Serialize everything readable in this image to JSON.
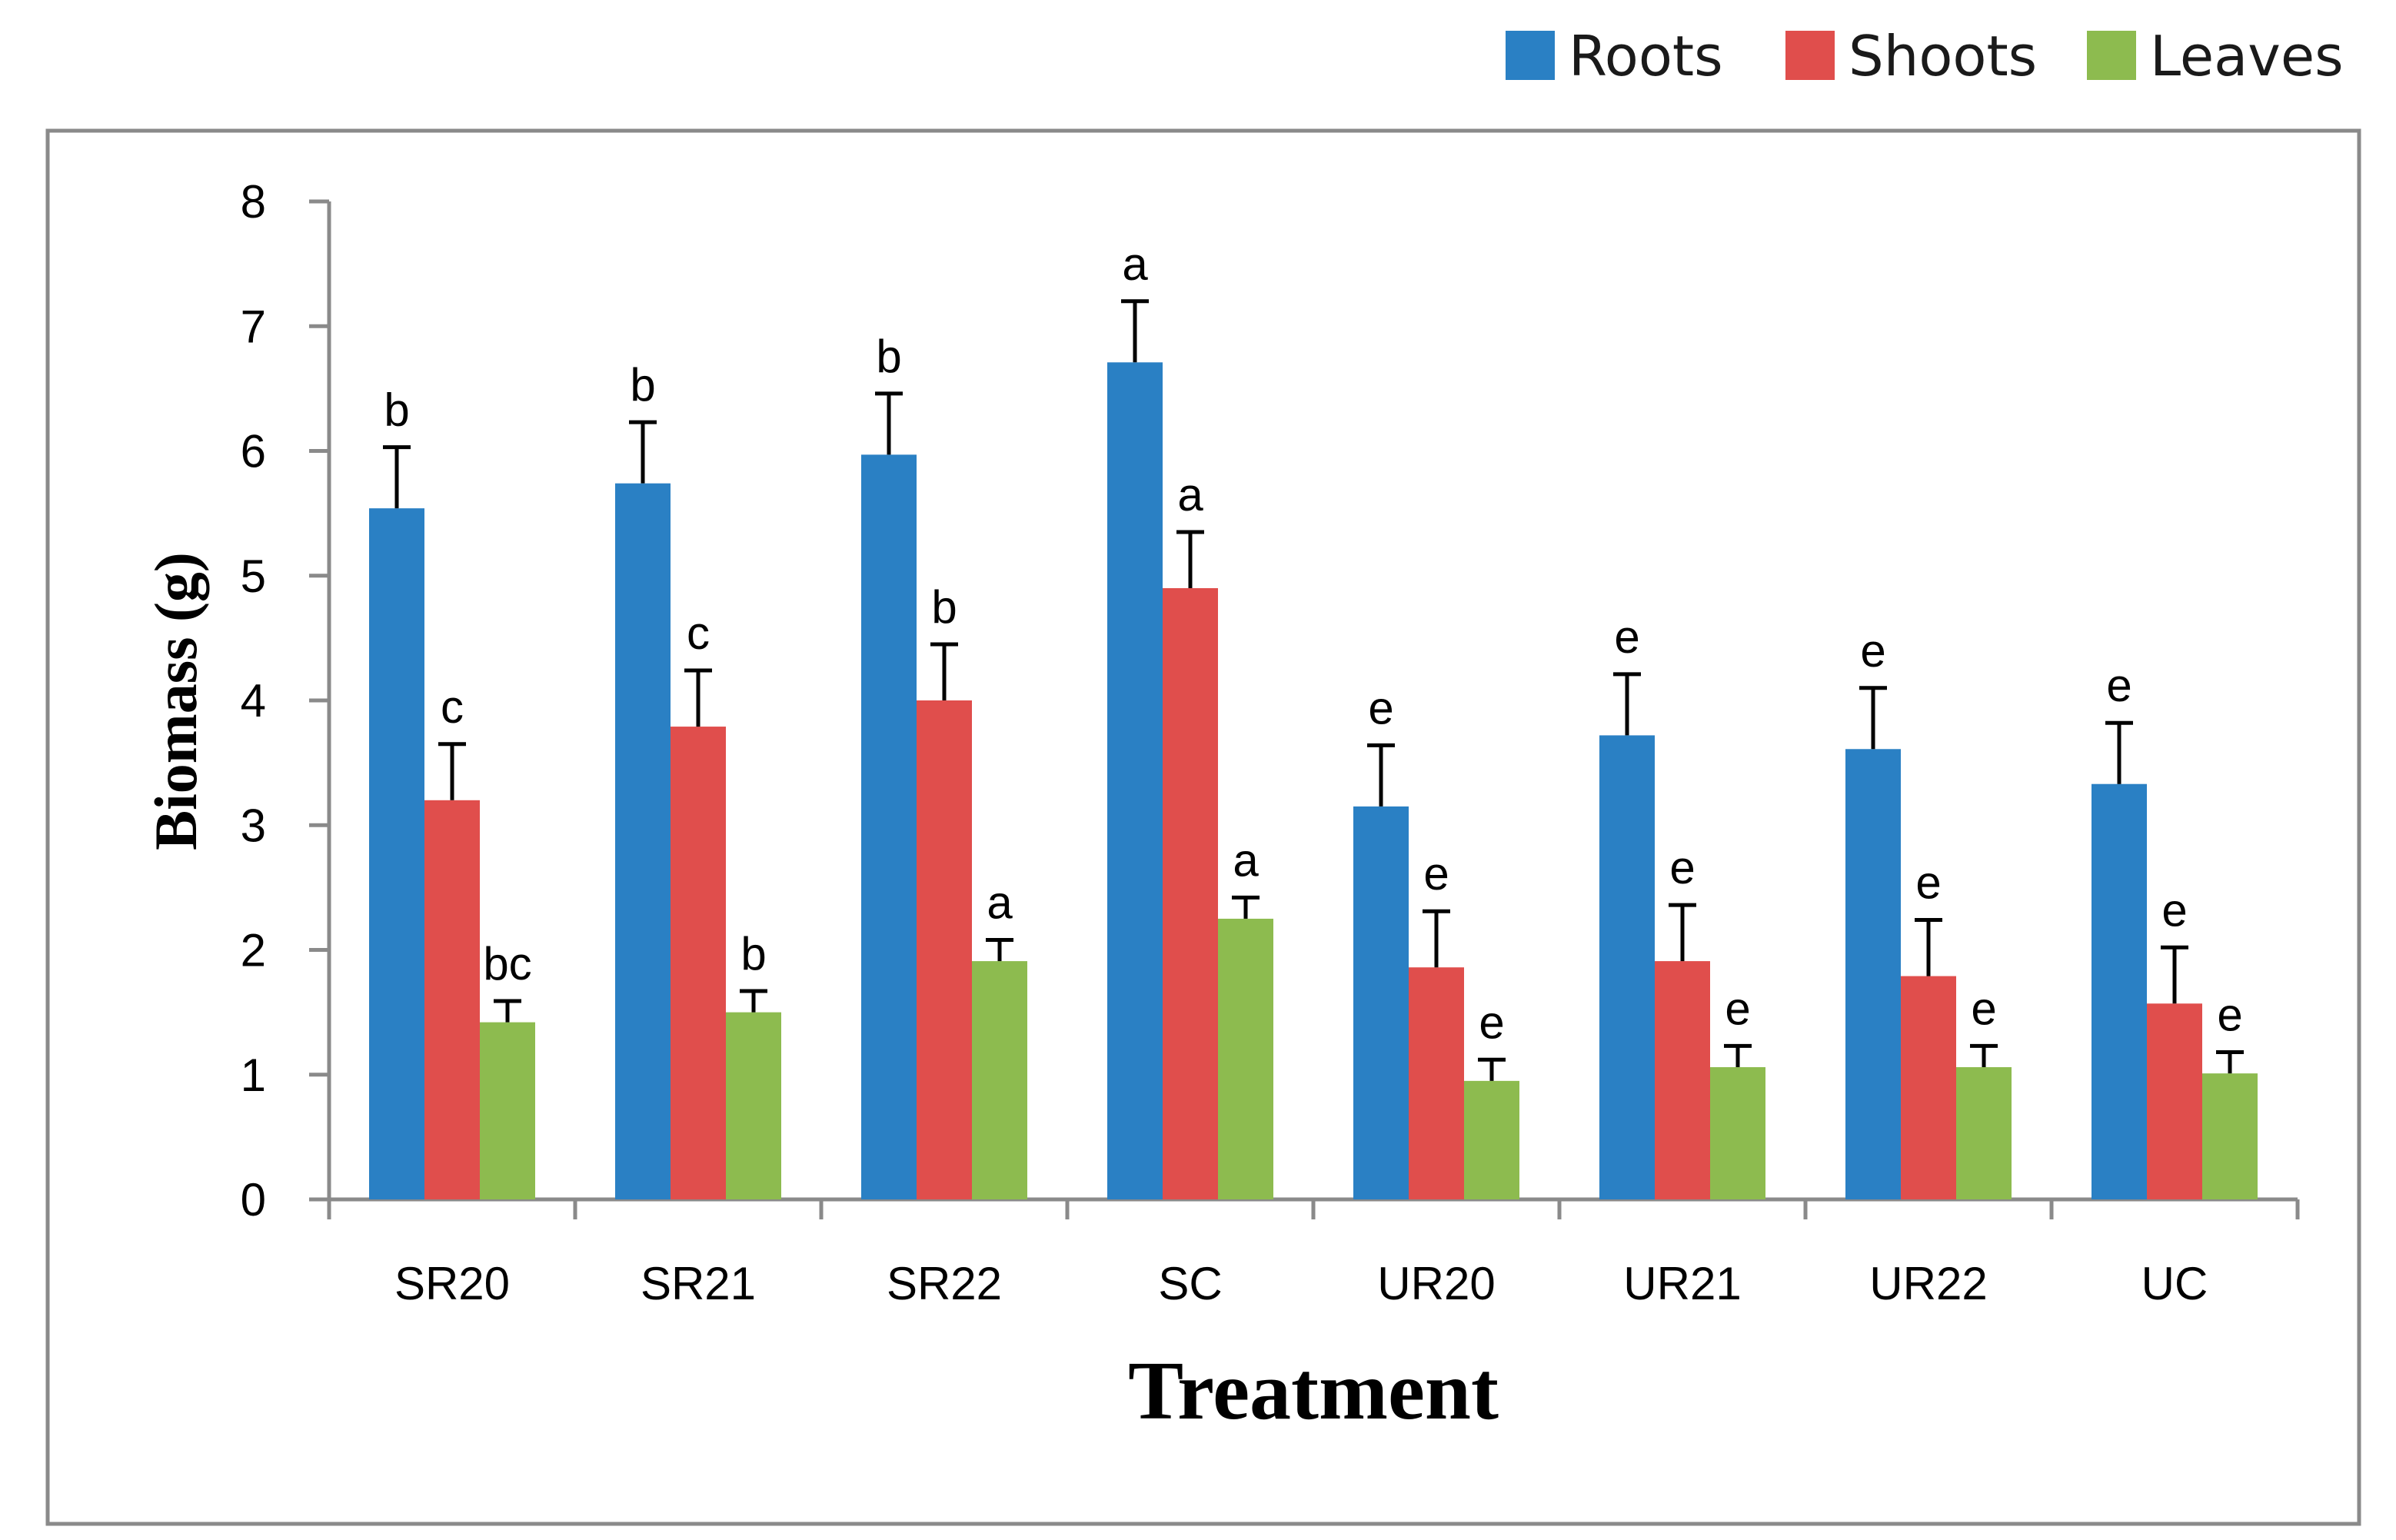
{
  "chart_data": {
    "type": "bar",
    "title": "",
    "xlabel": "Treatment",
    "ylabel": "Biomass (g)",
    "ylim": [
      0,
      8
    ],
    "yticks": [
      0,
      1,
      2,
      3,
      4,
      5,
      6,
      7,
      8
    ],
    "grid": false,
    "legend_position": "top-right",
    "categories": [
      "SR20",
      "SR21",
      "SR22",
      "SC",
      "UR20",
      "UR21",
      "UR22",
      "UC"
    ],
    "series": [
      {
        "name": "Roots",
        "color": "#2A80C4",
        "values": [
          5.54,
          5.74,
          5.97,
          6.71,
          3.15,
          3.72,
          3.61,
          3.33
        ],
        "errors": [
          0.49,
          0.49,
          0.49,
          0.49,
          0.49,
          0.49,
          0.49,
          0.49
        ],
        "letters": [
          "b",
          "b",
          "b",
          "a",
          "e",
          "e",
          "e",
          "e"
        ]
      },
      {
        "name": "Shoots",
        "color": "#E04E4C",
        "values": [
          3.2,
          3.79,
          4.0,
          4.9,
          1.86,
          1.91,
          1.79,
          1.57
        ],
        "errors": [
          0.45,
          0.45,
          0.45,
          0.45,
          0.45,
          0.45,
          0.45,
          0.45
        ],
        "letters": [
          "c",
          "c",
          "b",
          "a",
          "e",
          "e",
          "e",
          "e"
        ]
      },
      {
        "name": "Leaves",
        "color": "#8DBB4F",
        "values": [
          1.42,
          1.5,
          1.91,
          2.25,
          0.95,
          1.06,
          1.06,
          1.01
        ],
        "errors": [
          0.17,
          0.17,
          0.17,
          0.17,
          0.17,
          0.17,
          0.17,
          0.17
        ],
        "letters": [
          "bc",
          "b",
          "a",
          "a",
          "e",
          "e",
          "e",
          "e"
        ]
      }
    ]
  }
}
